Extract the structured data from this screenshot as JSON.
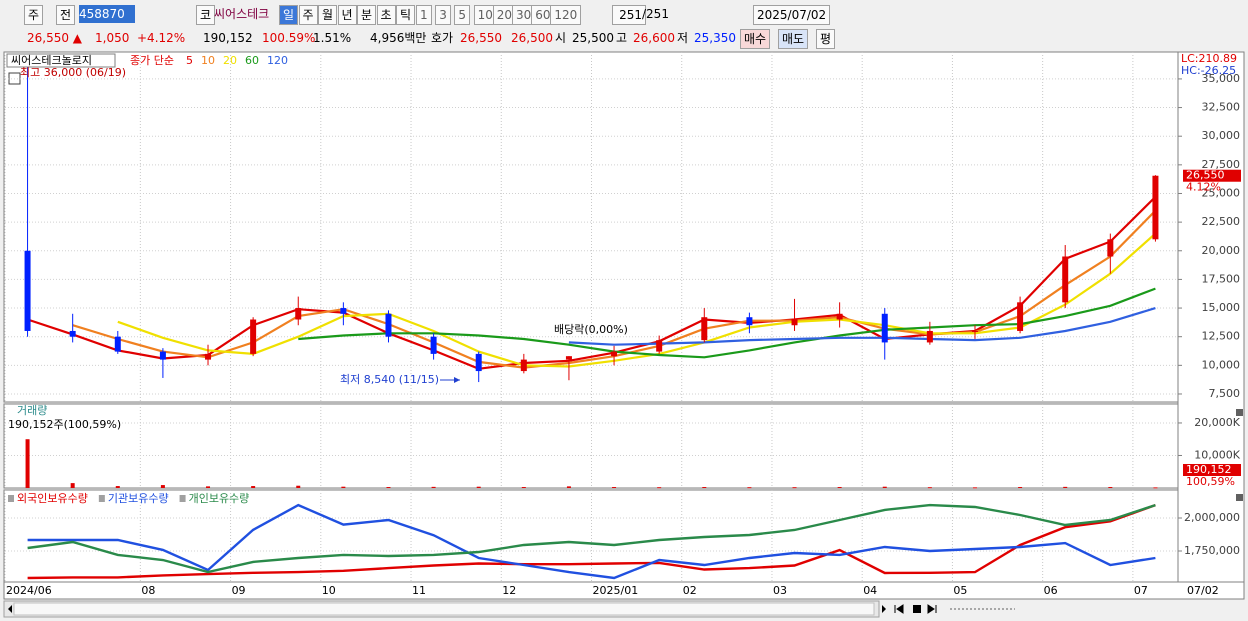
{
  "toolbar": {
    "mode": "주",
    "prev": "전",
    "code": "458870",
    "market": "코",
    "name": "씨어스테크",
    "periods": [
      "일",
      "주",
      "월",
      "년",
      "분",
      "초",
      "틱"
    ],
    "intervals": [
      "1",
      "3",
      "5",
      "10",
      "20",
      "30",
      "60",
      "120"
    ],
    "count": "251",
    "total": "/251",
    "date": "2025/07/02"
  },
  "quote": {
    "price": "26,550 ▲",
    "change": "1,050",
    "rate": "+4.12%",
    "volume": "190,152",
    "volume_ratio": "100.59%",
    "turnover": "1.51%",
    "amount": "4,956백만",
    "ask_label": "호가",
    "ask": "26,550",
    "bid": "26,500",
    "open_label": "시",
    "open": "25,500",
    "high_label": "고",
    "high": "26,600",
    "low_label": "저",
    "low": "25,350",
    "buy": "매수",
    "sell": "매도",
    "avg": "평"
  },
  "cursor_date": "07/02",
  "chart_data": [
    {
      "type": "candlestick",
      "title": "씨어스테크놀로지",
      "legend_label": "종가 단순",
      "categories": [
        "2024/06",
        null,
        null,
        "08",
        null,
        "09",
        null,
        "10",
        null,
        "11",
        null,
        "12",
        null,
        "2025/01",
        null,
        "02",
        null,
        "03",
        null,
        "04",
        null,
        "05",
        null,
        "06",
        null,
        "07"
      ],
      "open": [
        20000,
        13000,
        12500,
        11200,
        10500,
        11000,
        14000,
        15000,
        14500,
        12500,
        11000,
        9500,
        10500,
        10800,
        11200,
        12200,
        14200,
        13500,
        14000,
        14500,
        12000,
        13000,
        13000,
        15500,
        19500,
        21000
      ],
      "high": [
        36000,
        14500,
        13000,
        11500,
        11800,
        14200,
        16000,
        15500,
        14800,
        12800,
        11200,
        11000,
        10800,
        11700,
        12600,
        15000,
        14600,
        15800,
        15500,
        15000,
        13800,
        13500,
        16000,
        20500,
        21500,
        26600
      ],
      "low": [
        12500,
        12000,
        11000,
        8900,
        10000,
        10800,
        13500,
        13500,
        12000,
        10500,
        8540,
        9300,
        8700,
        10000,
        11000,
        12000,
        12800,
        13000,
        13300,
        10500,
        11800,
        12300,
        12800,
        15000,
        18000,
        20800
      ],
      "close": [
        13000,
        12500,
        11200,
        10500,
        11000,
        14000,
        15000,
        14500,
        12500,
        11000,
        9500,
        10500,
        10800,
        11200,
        12200,
        14200,
        13500,
        14000,
        14500,
        12000,
        13000,
        13000,
        15500,
        19500,
        21000,
        26550
      ],
      "up_color": "#e00000",
      "down_color": "#0020ff",
      "series": [
        {
          "name": "5",
          "color": "#e00000",
          "values": [
            14000,
            12700,
            11300,
            10600,
            10900,
            13500,
            14900,
            14600,
            12800,
            11300,
            9700,
            10200,
            10400,
            11100,
            12100,
            14000,
            13700,
            14000,
            14400,
            12300,
            12700,
            13000,
            15200,
            19300,
            20800,
            24700
          ]
        },
        {
          "name": "10",
          "color": "#f08020",
          "values": [
            null,
            13500,
            12300,
            11200,
            10700,
            12000,
            14300,
            14900,
            13600,
            12000,
            10300,
            9800,
            10200,
            10800,
            11700,
            13200,
            13900,
            13900,
            14200,
            13200,
            12700,
            12900,
            14300,
            17000,
            19500,
            23500
          ]
        },
        {
          "name": "20",
          "color": "#f0e000",
          "values": [
            null,
            null,
            13800,
            12400,
            11300,
            11000,
            12500,
            14300,
            14500,
            13000,
            11200,
            10000,
            9900,
            10400,
            11000,
            12000,
            13300,
            13800,
            14000,
            13500,
            12800,
            12800,
            13300,
            15300,
            18000,
            21500
          ]
        },
        {
          "name": "60",
          "color": "#1a9a1a",
          "values": [
            null,
            null,
            null,
            null,
            null,
            null,
            12300,
            12600,
            12800,
            12800,
            12600,
            12300,
            11800,
            11200,
            10900,
            10700,
            11300,
            12000,
            12600,
            13100,
            13300,
            13500,
            13600,
            14300,
            15200,
            16700
          ]
        },
        {
          "name": "120",
          "color": "#3060e0",
          "values": [
            null,
            null,
            null,
            null,
            null,
            null,
            null,
            null,
            null,
            null,
            null,
            null,
            12000,
            11800,
            11900,
            12000,
            12200,
            12300,
            12400,
            12400,
            12300,
            12200,
            12400,
            13000,
            13800,
            15000
          ]
        }
      ],
      "ylim": [
        6800,
        37000
      ],
      "yticks": [
        {
          "value": 7500,
          "label": "7,500"
        },
        {
          "value": 10000,
          "label": "10,000"
        },
        {
          "value": 12500,
          "label": "12,500"
        },
        {
          "value": 15000,
          "label": "15,000"
        },
        {
          "value": 17500,
          "label": "17,500"
        },
        {
          "value": 20000,
          "label": "20,000"
        },
        {
          "value": 22500,
          "label": "22,500"
        },
        {
          "value": 25000,
          "label": "25,000"
        },
        {
          "value": 27500,
          "label": "27,500"
        },
        {
          "value": 30000,
          "label": "30,000"
        },
        {
          "value": 32500,
          "label": "32,500"
        },
        {
          "value": 35000,
          "label": "35,000"
        }
      ],
      "annotations": [
        "최고 36,000 (06/19)",
        "최저 8,540 (11/15)",
        "배당락(0,00%)"
      ],
      "last_label": {
        "value": 26550,
        "label": "26,550"
      },
      "last_change": "4.12%",
      "lc": "LC:210.89",
      "hc": "HC:-26.25",
      "grid": true
    },
    {
      "type": "bar",
      "title": "거래량",
      "subtitle": "190,152주(100,59%)",
      "values": [
        15000,
        1500,
        600,
        900,
        500,
        600,
        700,
        400,
        300,
        350,
        400,
        300,
        500,
        300,
        250,
        300,
        250,
        250,
        300,
        400,
        250,
        200,
        300,
        350,
        300,
        190.152
      ],
      "color": "#e00000",
      "ylim": [
        0,
        24600
      ],
      "yticks": [
        {
          "value": 10000,
          "label": "10,000K"
        },
        {
          "value": 20000,
          "label": "20,000K"
        }
      ],
      "last_label": {
        "value": 190.152,
        "label": "190,152"
      },
      "last_ratio": "100,59%",
      "grid": true
    },
    {
      "type": "line",
      "series": [
        {
          "name": "외국인보유수량",
          "color": "#e00000",
          "values": [
            1545000,
            1550000,
            1550000,
            1565000,
            1575000,
            1585000,
            1590000,
            1600000,
            1620000,
            1640000,
            1655000,
            1650000,
            1650000,
            1655000,
            1660000,
            1610000,
            1620000,
            1640000,
            1757000,
            1583000,
            1585000,
            1590000,
            1795000,
            1930000,
            1975000,
            2098000
          ]
        },
        {
          "name": "기관보유수량",
          "color": "#2050e0",
          "values": [
            1833000,
            1833000,
            1833000,
            1758000,
            1606000,
            1910000,
            2098000,
            1950000,
            1985000,
            1870000,
            1697000,
            1644000,
            1590000,
            1545000,
            1682000,
            1644000,
            1697000,
            1735000,
            1720000,
            1780000,
            1750000,
            1765000,
            1780000,
            1810000,
            1644000,
            1697000
          ]
        },
        {
          "name": "개인보유수량",
          "color": "#2a8a4a",
          "values": [
            1773000,
            1818000,
            1720000,
            1682000,
            1591000,
            1667000,
            1697000,
            1720000,
            1712000,
            1720000,
            1742000,
            1795000,
            1818000,
            1795000,
            1833000,
            1856000,
            1871000,
            1909000,
            1985000,
            2061000,
            2098000,
            2083000,
            2023000,
            1947000,
            1985000,
            2098000
          ]
        }
      ],
      "ylim": [
        1515000,
        2197000
      ],
      "yticks": [
        {
          "value": 1750000,
          "label": "1,750,000"
        },
        {
          "value": 2000000,
          "label": "2,000,000"
        }
      ],
      "grid": true
    }
  ]
}
